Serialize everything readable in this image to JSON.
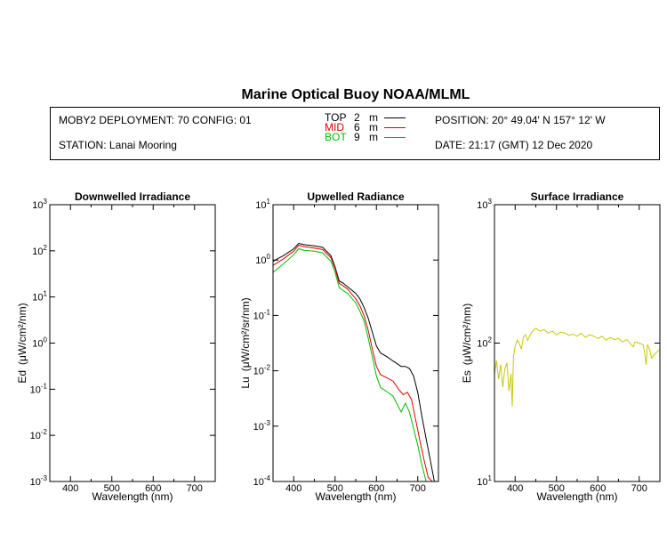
{
  "header": {
    "title": "Marine Optical Buoy NOAA/MLML",
    "deployment": "MOBY2 DEPLOYMENT: 70 CONFIG: 01",
    "station": "STATION: Lanai Mooring",
    "position": "POSITION: 20° 49.04' N   157° 12' W",
    "date": "DATE: 21:17 (GMT) 12 Dec 2020",
    "legend": [
      {
        "name": "TOP",
        "depth": "2",
        "unit": "m",
        "color": "#000000"
      },
      {
        "name": "MID",
        "depth": "6",
        "unit": "m",
        "color": "#dd0000"
      },
      {
        "name": "BOT",
        "depth": "9",
        "unit": "m",
        "color": "#00bb00"
      }
    ]
  },
  "chart_data": [
    {
      "type": "line",
      "title": "Downwelled Irradiance",
      "xlabel": "Wavelength (nm)",
      "ylabel_prefix": "Ed",
      "ylabel_unit": "(μW/cm²/nm)",
      "xlim": [
        350,
        750
      ],
      "ylog": true,
      "ylim": [
        0.001,
        1000
      ],
      "x_ticks": [
        400,
        500,
        600,
        700
      ],
      "y_tick_labels": [
        {
          "base": "10",
          "exp": "3",
          "value": 1000
        },
        {
          "base": "10",
          "exp": "2",
          "value": 100
        },
        {
          "base": "10",
          "exp": "1",
          "value": 10
        },
        {
          "base": "10",
          "exp": "0",
          "value": 1
        },
        {
          "base": "10",
          "exp": "-1",
          "value": 0.1
        },
        {
          "base": "10",
          "exp": "-2",
          "value": 0.01
        },
        {
          "base": "10",
          "exp": "-3",
          "value": 0.001
        }
      ],
      "series": []
    },
    {
      "type": "line",
      "title": "Upwelled Radiance",
      "xlabel": "Wavelength (nm)",
      "ylabel_prefix": "Lu",
      "ylabel_unit": "(μW/cm²/sr/nm)",
      "xlim": [
        350,
        750
      ],
      "ylog": true,
      "ylim": [
        0.0001,
        10
      ],
      "x_ticks": [
        400,
        500,
        600,
        700
      ],
      "y_tick_labels": [
        {
          "base": "10",
          "exp": "1",
          "value": 10
        },
        {
          "base": "10",
          "exp": "0",
          "value": 1
        },
        {
          "base": "10",
          "exp": "-1",
          "value": 0.1
        },
        {
          "base": "10",
          "exp": "-2",
          "value": 0.01
        },
        {
          "base": "10",
          "exp": "-3",
          "value": 0.001
        },
        {
          "base": "10",
          "exp": "-4",
          "value": 0.0001
        }
      ],
      "series": [
        {
          "name": "TOP",
          "color": "#000000",
          "x": [
            350,
            375,
            400,
            412,
            425,
            450,
            470,
            490,
            500,
            510,
            520,
            530,
            550,
            560,
            570,
            580,
            590,
            600,
            610,
            625,
            640,
            660,
            670,
            680,
            690,
            700,
            710,
            720,
            730,
            740,
            750
          ],
          "y": [
            0.95,
            1.2,
            1.6,
            2.0,
            1.9,
            1.8,
            1.7,
            1.2,
            0.75,
            0.42,
            0.38,
            0.33,
            0.25,
            0.2,
            0.14,
            0.09,
            0.05,
            0.028,
            0.021,
            0.018,
            0.015,
            0.012,
            0.012,
            0.011,
            0.008,
            0.004,
            0.0015,
            0.0006,
            0.00025,
            0.0001,
            0.0001
          ]
        },
        {
          "name": "MID",
          "color": "#dd0000",
          "x": [
            350,
            375,
            400,
            412,
            425,
            450,
            470,
            490,
            500,
            510,
            520,
            530,
            550,
            560,
            570,
            580,
            590,
            600,
            610,
            625,
            640,
            655,
            665,
            675,
            685,
            695,
            705,
            715,
            725,
            735,
            750
          ],
          "y": [
            0.8,
            1.05,
            1.45,
            1.85,
            1.75,
            1.65,
            1.55,
            1.1,
            0.7,
            0.38,
            0.34,
            0.3,
            0.2,
            0.15,
            0.1,
            0.055,
            0.025,
            0.012,
            0.0085,
            0.0075,
            0.0065,
            0.0045,
            0.0037,
            0.0041,
            0.003,
            0.0013,
            0.00055,
            0.00025,
            0.00012,
            0.0001,
            0.0001
          ]
        },
        {
          "name": "BOT",
          "color": "#00bb00",
          "x": [
            350,
            375,
            400,
            412,
            425,
            450,
            470,
            490,
            500,
            510,
            520,
            530,
            550,
            560,
            570,
            580,
            590,
            600,
            610,
            625,
            640,
            650,
            660,
            670,
            680,
            690,
            700,
            710,
            720,
            730,
            750
          ],
          "y": [
            0.6,
            0.85,
            1.25,
            1.6,
            1.5,
            1.45,
            1.35,
            0.95,
            0.6,
            0.32,
            0.28,
            0.25,
            0.17,
            0.12,
            0.08,
            0.04,
            0.018,
            0.008,
            0.005,
            0.0042,
            0.0035,
            0.0025,
            0.0018,
            0.0026,
            0.0018,
            0.0009,
            0.00045,
            0.0002,
            0.0001,
            0.0001,
            0.0001
          ]
        }
      ]
    },
    {
      "type": "line",
      "title": "Surface Irradiance",
      "xlabel": "Wavelength (nm)",
      "ylabel_prefix": "Es",
      "ylabel_unit": "(μW/cm²/nm)",
      "xlim": [
        350,
        750
      ],
      "ylog": true,
      "ylim": [
        10,
        1000
      ],
      "x_ticks": [
        400,
        500,
        600,
        700
      ],
      "y_tick_labels": [
        {
          "base": "10",
          "exp": "3",
          "value": 1000
        },
        {
          "base": "10",
          "exp": "2",
          "value": 100
        },
        {
          "base": "10",
          "exp": "1",
          "value": 10
        }
      ],
      "series": [
        {
          "name": "Es",
          "color": "#c8c800",
          "x": [
            350,
            355,
            360,
            365,
            370,
            375,
            380,
            385,
            390,
            393,
            396,
            400,
            405,
            410,
            415,
            420,
            425,
            430,
            440,
            450,
            460,
            470,
            480,
            490,
            500,
            510,
            520,
            530,
            540,
            550,
            560,
            570,
            580,
            590,
            600,
            610,
            620,
            630,
            640,
            650,
            660,
            670,
            680,
            686,
            690,
            700,
            710,
            717,
            720,
            725,
            730,
            740,
            750
          ],
          "y": [
            60,
            75,
            55,
            70,
            48,
            65,
            72,
            45,
            60,
            35,
            80,
            95,
            105,
            100,
            90,
            110,
            115,
            105,
            120,
            128,
            122,
            125,
            118,
            122,
            115,
            120,
            118,
            114,
            116,
            112,
            118,
            110,
            115,
            112,
            108,
            112,
            105,
            110,
            106,
            108,
            102,
            106,
            98,
            94,
            102,
            100,
            97,
            70,
            98,
            90,
            78,
            85,
            90
          ]
        }
      ]
    }
  ]
}
